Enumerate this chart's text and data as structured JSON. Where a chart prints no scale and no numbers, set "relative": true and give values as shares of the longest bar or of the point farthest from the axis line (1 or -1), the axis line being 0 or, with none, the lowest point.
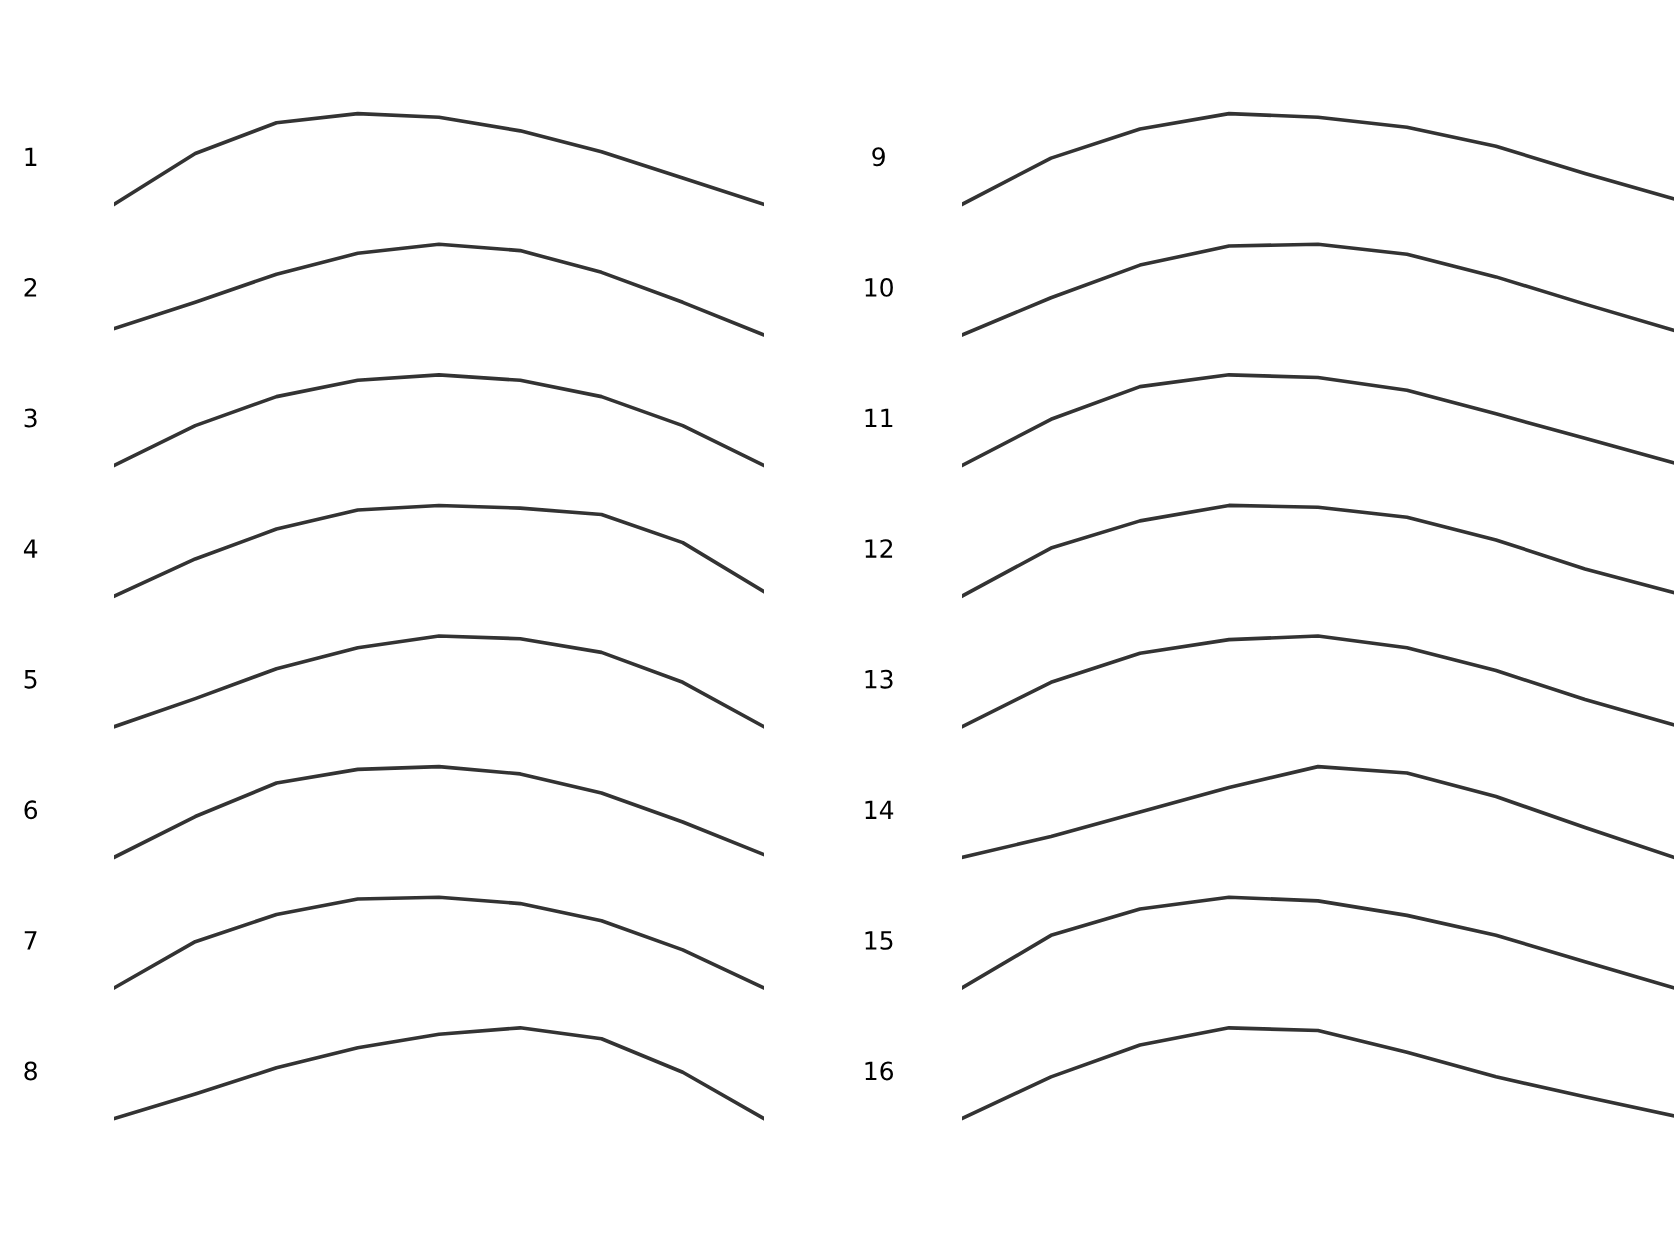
{
  "chart_data": [
    {
      "type": "line",
      "relative": true,
      "ylabel": "1",
      "color": "#333333",
      "categories": [
        null,
        null,
        null,
        null,
        null,
        null,
        null,
        null,
        null
      ],
      "values": [
        0,
        0.56,
        0.9,
        1,
        0.96,
        0.81,
        0.58,
        0.29,
        0
      ]
    },
    {
      "type": "line",
      "relative": true,
      "ylabel": "2",
      "color": "#333333",
      "categories": [
        null,
        null,
        null,
        null,
        null,
        null,
        null,
        null,
        null
      ],
      "values": [
        0.07,
        0.36,
        0.67,
        0.9,
        1,
        0.93,
        0.69,
        0.36,
        0
      ]
    },
    {
      "type": "line",
      "relative": true,
      "ylabel": "3",
      "color": "#333333",
      "categories": [
        null,
        null,
        null,
        null,
        null,
        null,
        null,
        null,
        null
      ],
      "values": [
        0,
        0.44,
        0.76,
        0.94,
        1,
        0.94,
        0.76,
        0.44,
        0
      ]
    },
    {
      "type": "line",
      "relative": true,
      "ylabel": "4",
      "color": "#333333",
      "categories": [
        null,
        null,
        null,
        null,
        null,
        null,
        null,
        null,
        null
      ],
      "values": [
        0,
        0.41,
        0.74,
        0.95,
        1,
        0.97,
        0.9,
        0.59,
        0.05
      ]
    },
    {
      "type": "line",
      "relative": true,
      "ylabel": "5",
      "color": "#333333",
      "categories": [
        null,
        null,
        null,
        null,
        null,
        null,
        null,
        null,
        null
      ],
      "values": [
        0,
        0.31,
        0.64,
        0.87,
        1,
        0.97,
        0.82,
        0.49,
        0
      ]
    },
    {
      "type": "line",
      "relative": true,
      "ylabel": "6",
      "color": "#333333",
      "categories": [
        null,
        null,
        null,
        null,
        null,
        null,
        null,
        null,
        null
      ],
      "values": [
        0,
        0.45,
        0.82,
        0.97,
        1,
        0.92,
        0.71,
        0.39,
        0.03
      ]
    },
    {
      "type": "line",
      "relative": true,
      "ylabel": "7",
      "color": "#333333",
      "categories": [
        null,
        null,
        null,
        null,
        null,
        null,
        null,
        null,
        null
      ],
      "values": [
        0,
        0.51,
        0.81,
        0.98,
        1,
        0.93,
        0.74,
        0.42,
        0
      ]
    },
    {
      "type": "line",
      "relative": true,
      "ylabel": "8",
      "color": "#333333",
      "categories": [
        null,
        null,
        null,
        null,
        null,
        null,
        null,
        null,
        null
      ],
      "values": [
        0,
        0.27,
        0.56,
        0.78,
        0.93,
        1,
        0.88,
        0.51,
        0
      ]
    },
    {
      "type": "line",
      "relative": true,
      "ylabel": "9",
      "color": "#333333",
      "categories": [
        null,
        null,
        null,
        null,
        null,
        null,
        null,
        null,
        null
      ],
      "values": [
        0,
        0.51,
        0.83,
        1,
        0.96,
        0.85,
        0.64,
        0.34,
        0.06
      ]
    },
    {
      "type": "line",
      "relative": true,
      "ylabel": "10",
      "color": "#333333",
      "categories": [
        null,
        null,
        null,
        null,
        null,
        null,
        null,
        null,
        null
      ],
      "values": [
        0,
        0.41,
        0.77,
        0.98,
        1,
        0.89,
        0.64,
        0.34,
        0.05
      ]
    },
    {
      "type": "line",
      "relative": true,
      "ylabel": "11",
      "color": "#333333",
      "categories": [
        null,
        null,
        null,
        null,
        null,
        null,
        null,
        null,
        null
      ],
      "values": [
        0,
        0.51,
        0.87,
        1,
        0.97,
        0.83,
        0.57,
        0.3,
        0.03
      ]
    },
    {
      "type": "line",
      "relative": true,
      "ylabel": "12",
      "color": "#333333",
      "categories": [
        null,
        null,
        null,
        null,
        null,
        null,
        null,
        null,
        null
      ],
      "values": [
        0,
        0.53,
        0.83,
        1,
        0.98,
        0.87,
        0.62,
        0.3,
        0.04
      ]
    },
    {
      "type": "line",
      "relative": true,
      "ylabel": "13",
      "color": "#333333",
      "categories": [
        null,
        null,
        null,
        null,
        null,
        null,
        null,
        null,
        null
      ],
      "values": [
        0,
        0.49,
        0.81,
        0.96,
        1,
        0.87,
        0.62,
        0.3,
        0.02
      ]
    },
    {
      "type": "line",
      "relative": true,
      "ylabel": "14",
      "color": "#333333",
      "categories": [
        null,
        null,
        null,
        null,
        null,
        null,
        null,
        null,
        null
      ],
      "values": [
        0,
        0.23,
        0.5,
        0.77,
        1,
        0.93,
        0.67,
        0.33,
        0
      ]
    },
    {
      "type": "line",
      "relative": true,
      "ylabel": "15",
      "color": "#333333",
      "categories": [
        null,
        null,
        null,
        null,
        null,
        null,
        null,
        null,
        null
      ],
      "values": [
        0,
        0.58,
        0.87,
        1,
        0.96,
        0.8,
        0.58,
        0.29,
        0
      ]
    },
    {
      "type": "line",
      "relative": true,
      "ylabel": "16",
      "color": "#333333",
      "categories": [
        null,
        null,
        null,
        null,
        null,
        null,
        null,
        null,
        null
      ],
      "values": [
        0,
        0.46,
        0.81,
        1,
        0.97,
        0.73,
        0.46,
        0.24,
        0.03
      ]
    }
  ]
}
